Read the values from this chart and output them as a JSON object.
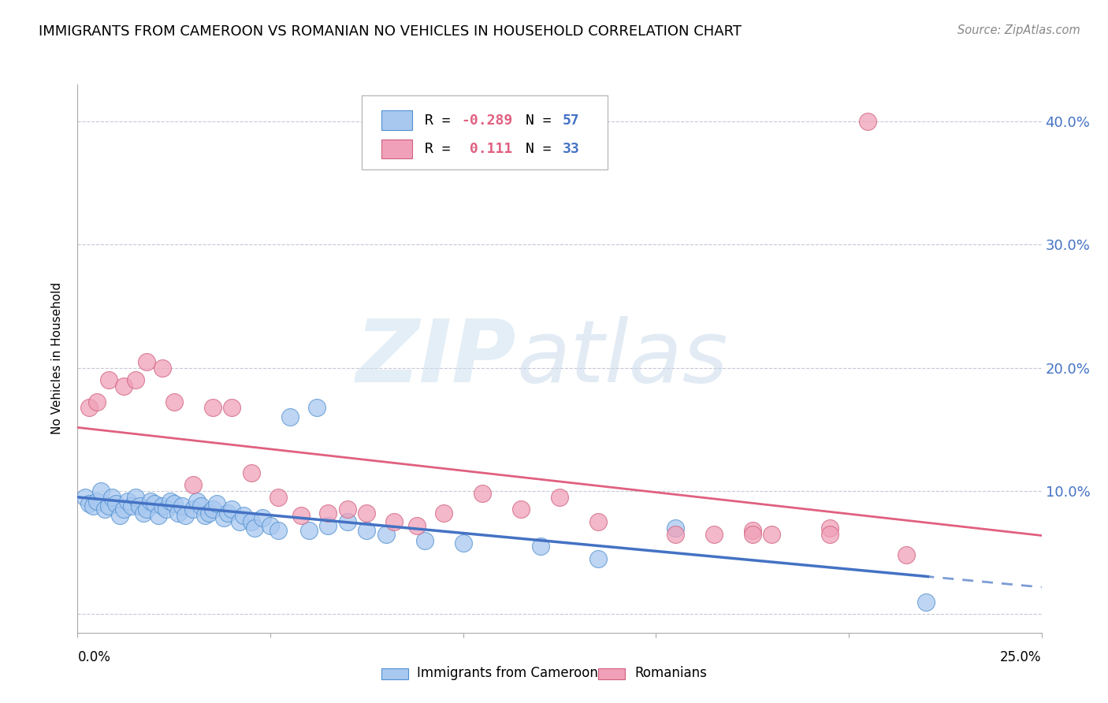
{
  "title": "IMMIGRANTS FROM CAMEROON VS ROMANIAN NO VEHICLES IN HOUSEHOLD CORRELATION CHART",
  "source": "Source: ZipAtlas.com",
  "ylabel": "No Vehicles in Household",
  "ytick_values": [
    0.0,
    0.1,
    0.2,
    0.3,
    0.4
  ],
  "ytick_labels": [
    "",
    "10.0%",
    "20.0%",
    "30.0%",
    "40.0%"
  ],
  "xlim": [
    0.0,
    0.25
  ],
  "ylim": [
    -0.015,
    0.43
  ],
  "legend_R_blue": "-0.289",
  "legend_N_blue": "57",
  "legend_R_pink": "0.111",
  "legend_N_pink": "33",
  "blue_fill": "#A8C8F0",
  "blue_edge": "#5090D0",
  "pink_fill": "#F0A0B8",
  "pink_edge": "#D06080",
  "blue_line_color": "#4472C4",
  "pink_line_color": "#E06080",
  "grid_color": "#C8C8D8",
  "blue_scatter_x": [
    0.002,
    0.003,
    0.004,
    0.005,
    0.006,
    0.007,
    0.008,
    0.009,
    0.01,
    0.011,
    0.012,
    0.013,
    0.014,
    0.015,
    0.016,
    0.017,
    0.018,
    0.019,
    0.02,
    0.021,
    0.022,
    0.023,
    0.024,
    0.025,
    0.026,
    0.027,
    0.028,
    0.03,
    0.031,
    0.032,
    0.033,
    0.034,
    0.035,
    0.036,
    0.038,
    0.039,
    0.04,
    0.042,
    0.043,
    0.045,
    0.046,
    0.048,
    0.05,
    0.052,
    0.055,
    0.06,
    0.062,
    0.065,
    0.07,
    0.075,
    0.08,
    0.09,
    0.1,
    0.12,
    0.135,
    0.155,
    0.22
  ],
  "blue_scatter_y": [
    0.095,
    0.09,
    0.088,
    0.092,
    0.1,
    0.085,
    0.088,
    0.095,
    0.09,
    0.08,
    0.085,
    0.092,
    0.088,
    0.095,
    0.088,
    0.082,
    0.085,
    0.092,
    0.09,
    0.08,
    0.088,
    0.085,
    0.092,
    0.09,
    0.082,
    0.088,
    0.08,
    0.085,
    0.092,
    0.088,
    0.08,
    0.082,
    0.085,
    0.09,
    0.078,
    0.082,
    0.085,
    0.075,
    0.08,
    0.075,
    0.07,
    0.078,
    0.072,
    0.068,
    0.16,
    0.068,
    0.168,
    0.072,
    0.075,
    0.068,
    0.065,
    0.06,
    0.058,
    0.055,
    0.045,
    0.07,
    0.01
  ],
  "pink_scatter_x": [
    0.003,
    0.005,
    0.008,
    0.012,
    0.015,
    0.018,
    0.022,
    0.025,
    0.03,
    0.035,
    0.04,
    0.045,
    0.052,
    0.058,
    0.065,
    0.07,
    0.075,
    0.082,
    0.088,
    0.095,
    0.105,
    0.115,
    0.125,
    0.135,
    0.155,
    0.165,
    0.175,
    0.195,
    0.205,
    0.215,
    0.175,
    0.18,
    0.195
  ],
  "pink_scatter_y": [
    0.168,
    0.172,
    0.19,
    0.185,
    0.19,
    0.205,
    0.2,
    0.172,
    0.105,
    0.168,
    0.168,
    0.115,
    0.095,
    0.08,
    0.082,
    0.085,
    0.082,
    0.075,
    0.072,
    0.082,
    0.098,
    0.085,
    0.095,
    0.075,
    0.065,
    0.065,
    0.068,
    0.07,
    0.4,
    0.048,
    0.065,
    0.065,
    0.065
  ]
}
